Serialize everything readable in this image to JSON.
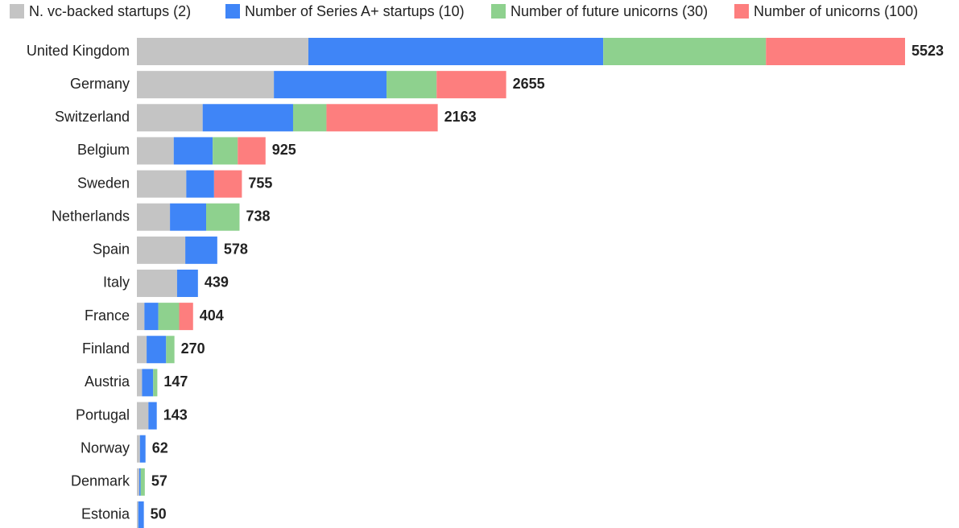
{
  "chart_data": {
    "type": "stacked-bar-horizontal",
    "categories": [
      "United Kingdom",
      "Germany",
      "Switzerland",
      "Belgium",
      "Sweden",
      "Netherlands",
      "Spain",
      "Italy",
      "France",
      "Finland",
      "Austria",
      "Portugal",
      "Norway",
      "Denmark",
      "Estonia"
    ],
    "series": [
      {
        "name": "N. vc-backed startups (2)",
        "color": "#c4c4c4",
        "values": [
          1233,
          985,
          473,
          265,
          355,
          238,
          348,
          289,
          54,
          70,
          37,
          83,
          22,
          17,
          10
        ]
      },
      {
        "name": "Number of Series A+ startups (10)",
        "color": "#3f85f7",
        "values": [
          2120,
          810,
          650,
          280,
          200,
          260,
          230,
          150,
          100,
          140,
          80,
          60,
          40,
          10,
          40
        ]
      },
      {
        "name": "Number of future unicorns (30)",
        "color": "#8ed18e",
        "values": [
          1170,
          360,
          240,
          180,
          0,
          240,
          0,
          0,
          150,
          60,
          30,
          0,
          0,
          30,
          0
        ]
      },
      {
        "name": "Number of unicorns (100)",
        "color": "#fd7e7e",
        "values": [
          1000,
          500,
          800,
          200,
          200,
          0,
          0,
          0,
          100,
          0,
          0,
          0,
          0,
          0,
          0
        ]
      }
    ],
    "totals": [
      5523,
      2655,
      2163,
      925,
      755,
      738,
      578,
      439,
      404,
      270,
      147,
      143,
      62,
      57,
      50
    ],
    "xlim": [
      0,
      5523
    ]
  }
}
